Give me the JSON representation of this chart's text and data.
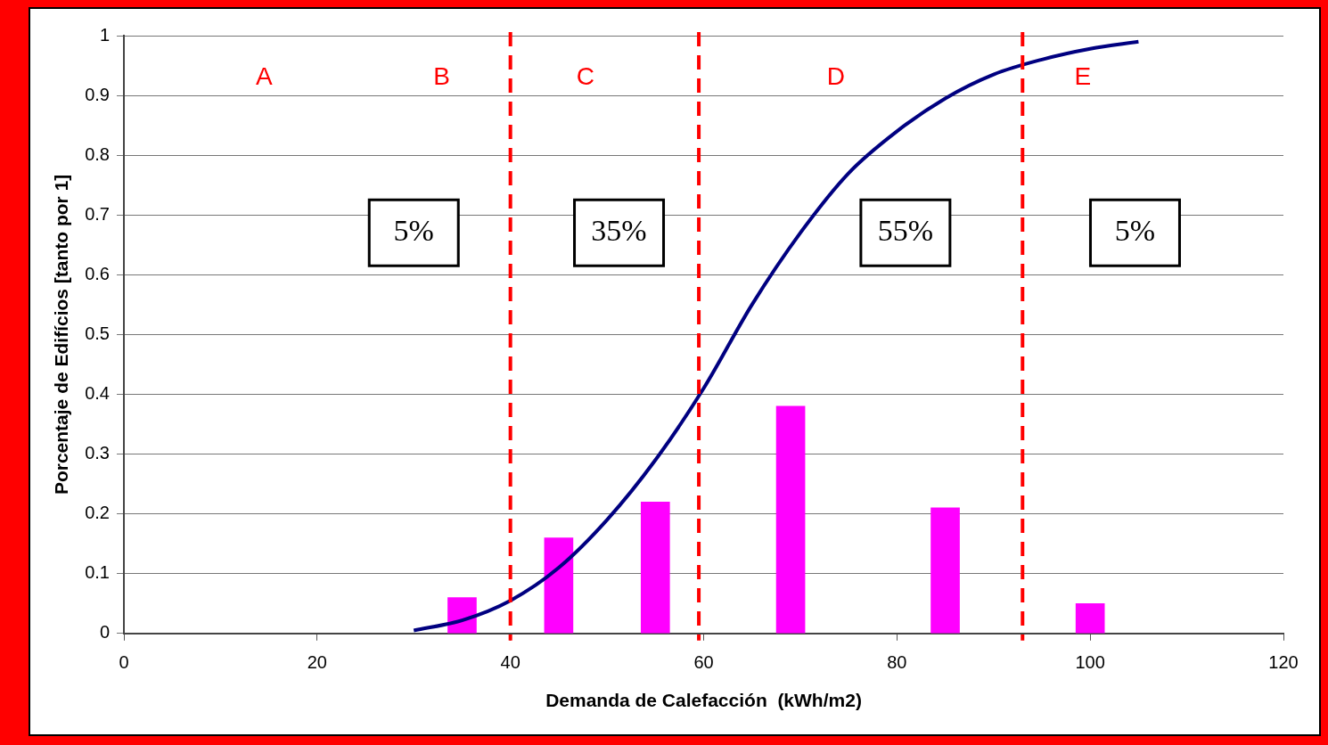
{
  "chart_data": {
    "type": "bar",
    "xlabel": "Demanda de Calefacción  (kWh/m2)",
    "ylabel": "Porcentaje de Edifícios [tanto por 1]",
    "xlim": [
      0,
      120
    ],
    "xticks": [
      0,
      20,
      40,
      60,
      80,
      100,
      120
    ],
    "ylim": [
      0,
      1
    ],
    "yticks": [
      0,
      0.1,
      0.2,
      0.3,
      0.4,
      0.5,
      0.6,
      0.7,
      0.8,
      0.9,
      1
    ],
    "grid": "y",
    "legend": false,
    "series": [
      {
        "color": "#ff00ff",
        "x": [
          35,
          45,
          55,
          69,
          85,
          100
        ],
        "values": [
          0.06,
          0.16,
          0.22,
          0.38,
          0.21,
          0.05
        ]
      },
      {
        "type": "line",
        "color": "#000080",
        "marker": "none",
        "x": [
          30,
          35,
          40,
          45,
          50,
          55,
          60,
          65,
          70,
          75,
          80,
          85,
          90,
          95,
          100,
          105
        ],
        "values": [
          0.005,
          0.022,
          0.055,
          0.11,
          0.19,
          0.29,
          0.41,
          0.55,
          0.67,
          0.77,
          0.84,
          0.895,
          0.935,
          0.96,
          0.978,
          0.99
        ]
      }
    ],
    "ref_lines": [
      {
        "axis": "x",
        "value": 40,
        "color": "#ff0000",
        "line_style": "dashed"
      },
      {
        "axis": "x",
        "value": 59.5,
        "color": "#ff0000",
        "line_style": "dashed"
      },
      {
        "axis": "x",
        "value": 93,
        "color": "#ff0000",
        "line_style": "dashed"
      }
    ],
    "annotations": [
      "A",
      "B",
      "C",
      "D",
      "E",
      "5%",
      "35%",
      "55%",
      "5%"
    ]
  }
}
